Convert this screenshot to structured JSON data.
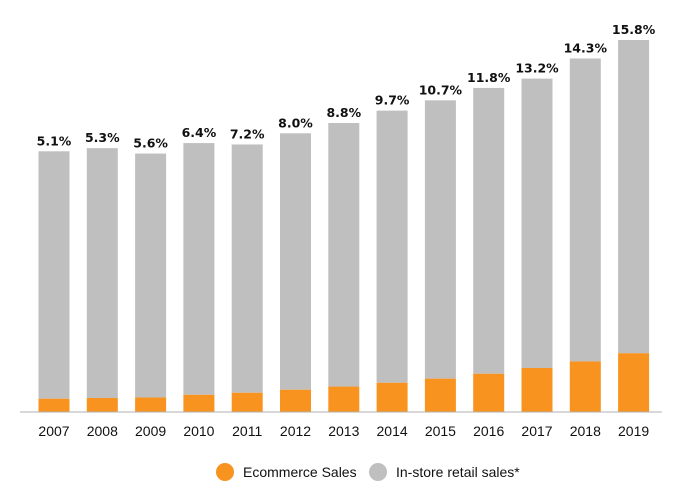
{
  "chart_data": {
    "type": "bar",
    "stacked": true,
    "categories": [
      "2007",
      "2008",
      "2009",
      "2010",
      "2011",
      "2012",
      "2013",
      "2014",
      "2015",
      "2016",
      "2017",
      "2018",
      "2019"
    ],
    "value_labels": [
      "5.1%",
      "5.3%",
      "5.6%",
      "6.4%",
      "7.2%",
      "8.0%",
      "8.8%",
      "9.7%",
      "10.7%",
      "11.8%",
      "13.2%",
      "14.3%",
      "15.8%"
    ],
    "series": [
      {
        "name": "Ecommerce Sales",
        "color": "#f7931e",
        "values": [
          136,
          143,
          148,
          176,
          197,
          228,
          260,
          299,
          341,
          391,
          450,
          517,
          601
        ]
      },
      {
        "name": "In-store retail sales*",
        "color": "#bfbfbf",
        "values": [
          2530,
          2555,
          2495,
          2574,
          2539,
          2622,
          2695,
          2783,
          2846,
          2923,
          2959,
          3098,
          3203
        ]
      }
    ],
    "ylim": [
      0,
      3804
    ],
    "grid": false,
    "legend_position": "bottom"
  }
}
